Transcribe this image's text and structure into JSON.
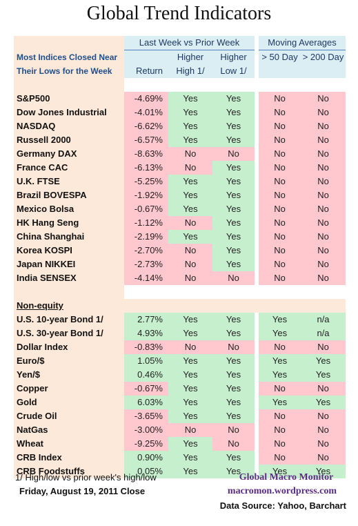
{
  "title": "Global Trend Indicators",
  "header": {
    "group_a": "Last Week vs Prior Week",
    "group_b": "Moving Averages",
    "row_label_1": "Most Indices Closed Near",
    "row_label_2": "Their Lows for the Week",
    "col_return": "Return",
    "col_high_1": "Higher",
    "col_high_2": "High 1/",
    "col_low_1": "Higher",
    "col_low_2": "Low  1/",
    "col_ma50": "> 50 Day",
    "col_ma200": "> 200 Day"
  },
  "equity_rows": [
    {
      "name": "S&P500",
      "ret": "-4.69%",
      "hh": "Yes",
      "hl": "Yes",
      "m50": "No",
      "m200": "No"
    },
    {
      "name": "Dow Jones Industrial",
      "ret": "-4.01%",
      "hh": "Yes",
      "hl": "Yes",
      "m50": "No",
      "m200": "No"
    },
    {
      "name": "NASDAQ",
      "ret": "-6.62%",
      "hh": "Yes",
      "hl": "Yes",
      "m50": "No",
      "m200": "No"
    },
    {
      "name": "Russell 2000",
      "ret": "-6.57%",
      "hh": "Yes",
      "hl": "Yes",
      "m50": "No",
      "m200": "No"
    },
    {
      "name": "Germany DAX",
      "ret": "-8.63%",
      "hh": "No",
      "hl": "No",
      "m50": "No",
      "m200": "No"
    },
    {
      "name": "France CAC",
      "ret": "-6.13%",
      "hh": "No",
      "hl": "Yes",
      "m50": "No",
      "m200": "No"
    },
    {
      "name": "U.K. FTSE",
      "ret": "-5.25%",
      "hh": "Yes",
      "hl": "Yes",
      "m50": "No",
      "m200": "No"
    },
    {
      "name": "Brazil BOVESPA",
      "ret": "-1.92%",
      "hh": "Yes",
      "hl": "Yes",
      "m50": "No",
      "m200": "No"
    },
    {
      "name": "Mexico Bolsa",
      "ret": "-0.67%",
      "hh": "Yes",
      "hl": "Yes",
      "m50": "No",
      "m200": "No"
    },
    {
      "name": "HK  Hang Seng",
      "ret": "-1.12%",
      "hh": "No",
      "hl": "Yes",
      "m50": "No",
      "m200": "No"
    },
    {
      "name": "China Shanghai",
      "ret": "-2.19%",
      "hh": "Yes",
      "hl": "Yes",
      "m50": "No",
      "m200": "No"
    },
    {
      "name": "Korea KOSPI",
      "ret": "-2.70%",
      "hh": "No",
      "hl": "Yes",
      "m50": "No",
      "m200": "No"
    },
    {
      "name": "Japan NIKKEI",
      "ret": "-2.73%",
      "hh": "No",
      "hl": "Yes",
      "m50": "No",
      "m200": "No"
    },
    {
      "name": "India SENSEX",
      "ret": "-4.14%",
      "hh": "No",
      "hl": "No",
      "m50": "No",
      "m200": "No"
    }
  ],
  "nonequity_label": "Non-equity",
  "nonequity_rows": [
    {
      "name": "U.S. 10-year Bond 1/",
      "ret": "2.77%",
      "hh": "Yes",
      "hl": "Yes",
      "m50": "Yes",
      "m200": "n/a"
    },
    {
      "name": "U.S. 30-year Bond 1/",
      "ret": "4.93%",
      "hh": "Yes",
      "hl": "Yes",
      "m50": "Yes",
      "m200": "n/a"
    },
    {
      "name": "Dollar Index",
      "ret": "-0.83%",
      "hh": "No",
      "hl": "No",
      "m50": "No",
      "m200": "No"
    },
    {
      "name": "Euro/$",
      "ret": "1.05%",
      "hh": "Yes",
      "hl": "Yes",
      "m50": "Yes",
      "m200": "Yes"
    },
    {
      "name": "Yen/$",
      "ret": "0.46%",
      "hh": "Yes",
      "hl": "Yes",
      "m50": "Yes",
      "m200": "Yes"
    },
    {
      "name": "Copper",
      "ret": "-0.67%",
      "hh": "Yes",
      "hl": "Yes",
      "m50": "No",
      "m200": "No"
    },
    {
      "name": "Gold",
      "ret": "6.03%",
      "hh": "Yes",
      "hl": "Yes",
      "m50": "Yes",
      "m200": "Yes"
    },
    {
      "name": "Crude Oil",
      "ret": "-3.65%",
      "hh": "Yes",
      "hl": "Yes",
      "m50": "No",
      "m200": "No"
    },
    {
      "name": "NatGas",
      "ret": "-3.00%",
      "hh": "No",
      "hl": "No",
      "m50": "No",
      "m200": "No"
    },
    {
      "name": "Wheat",
      "ret": "-9.25%",
      "hh": "Yes",
      "hl": "No",
      "m50": "No",
      "m200": "No"
    },
    {
      "name": "CRB Index",
      "ret": "0.90%",
      "hh": "Yes",
      "hl": "Yes",
      "m50": "No",
      "m200": "No"
    },
    {
      "name": "CRB Foodstuffs",
      "ret": "0.05%",
      "hh": "Yes",
      "hl": "Yes",
      "m50": "Yes",
      "m200": "Yes"
    }
  ],
  "footer": {
    "note": "1/  High/low vs prior week's high/low",
    "date": "Friday, August 19, 2011  Close",
    "brand": "Global Macro Monitor",
    "site": "macromon.wordpress.com",
    "source": "Data Source: Yahoo, Barchart"
  },
  "colors": {
    "positive": "#c6efce",
    "negative": "#ffc7ce",
    "label_bg": "#fde9d9",
    "header_bg": "#daeef3",
    "brand": "#5b2c86"
  }
}
